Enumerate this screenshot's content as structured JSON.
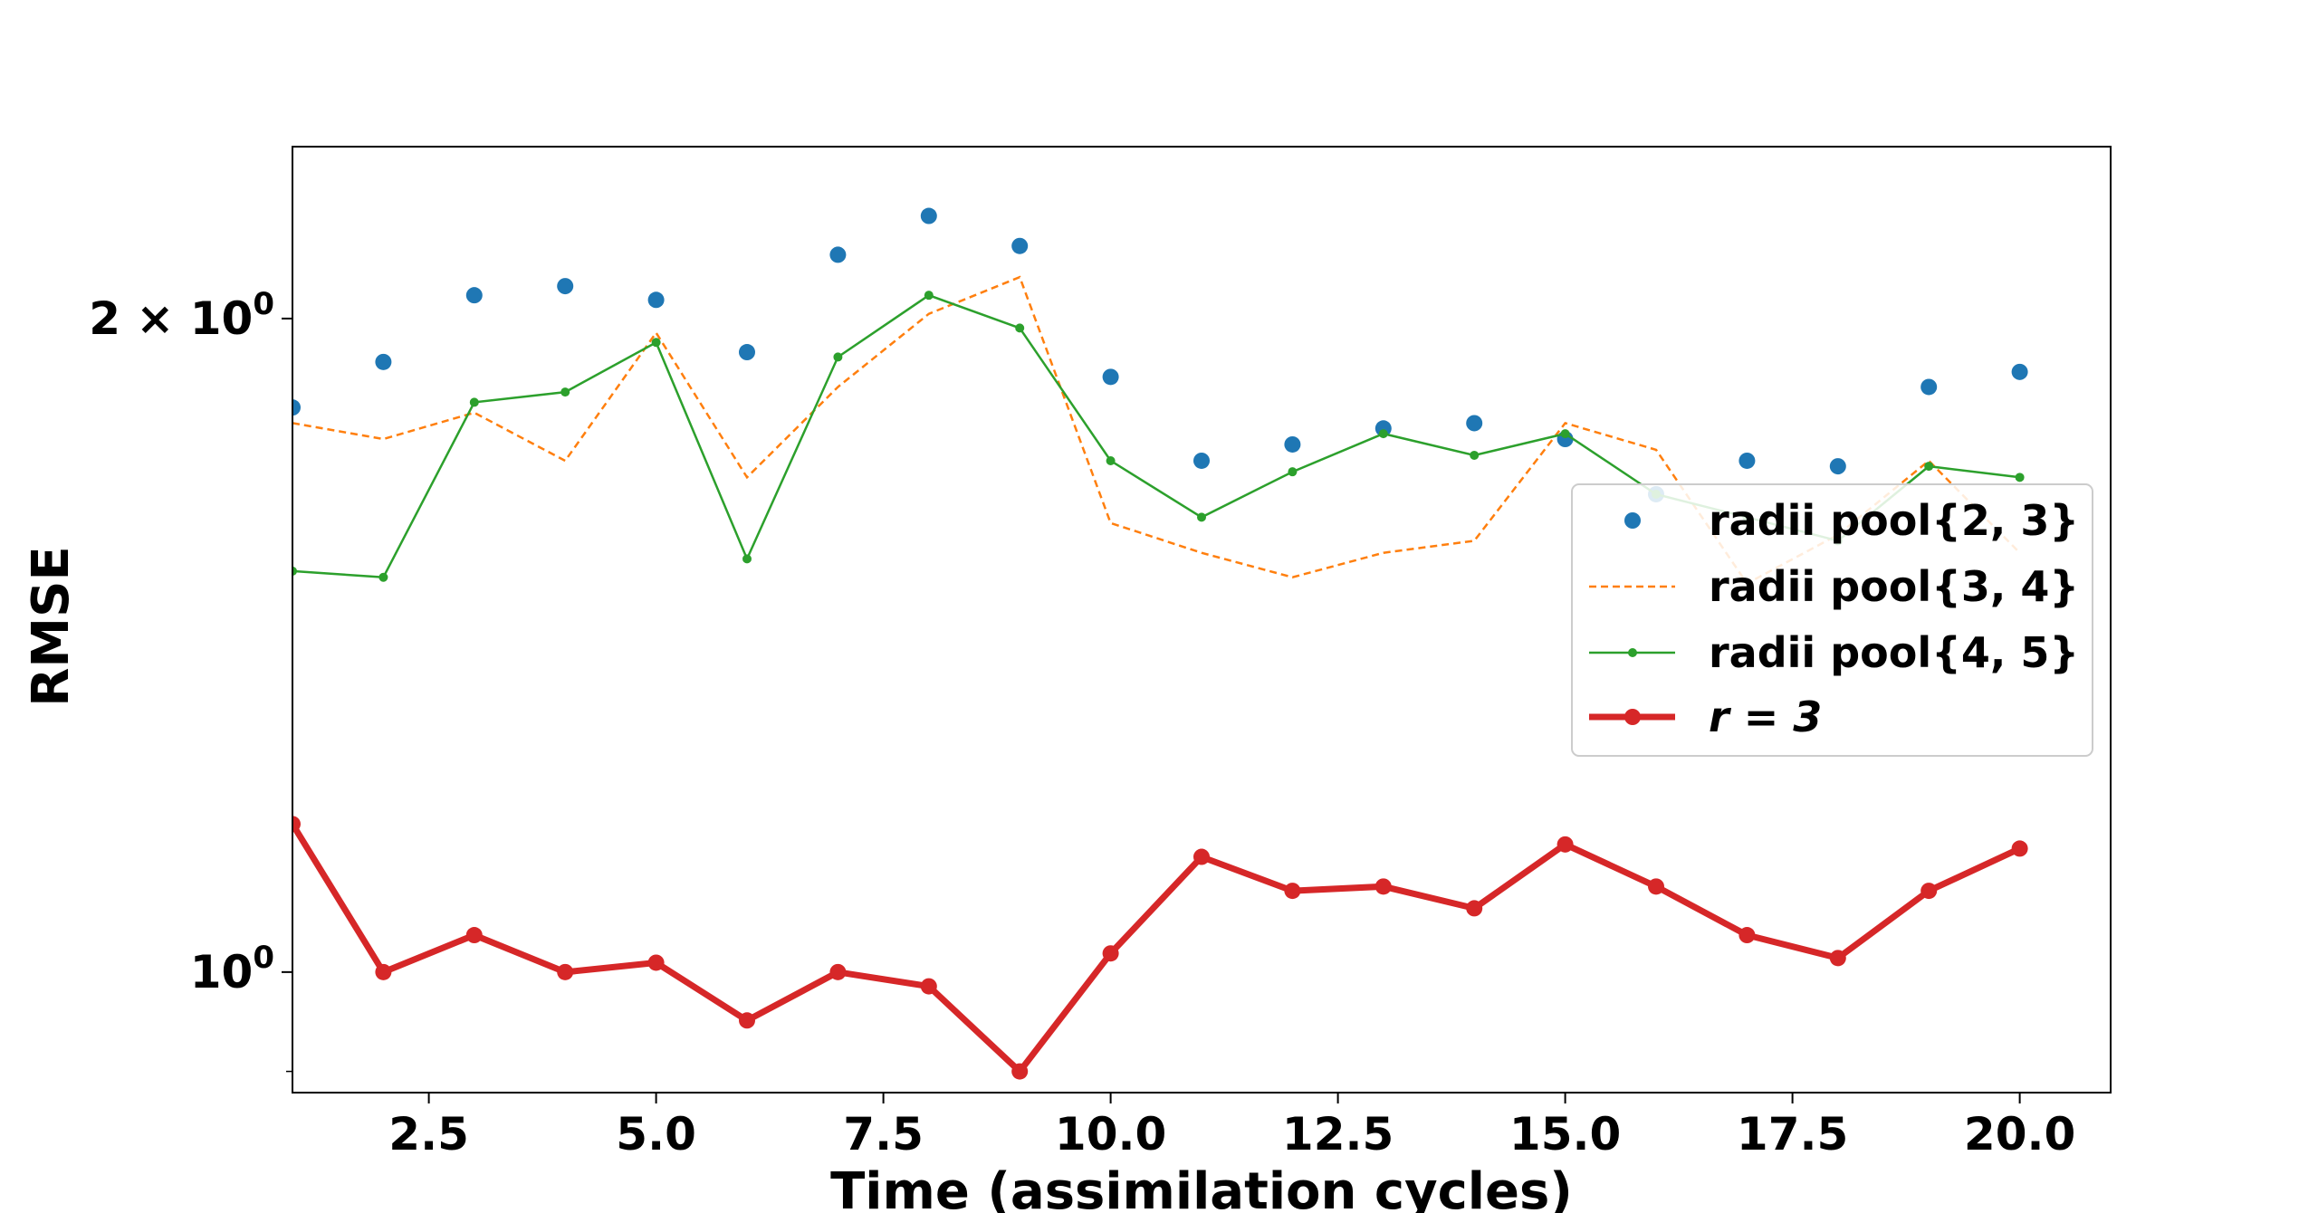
{
  "chart_data": {
    "type": "line",
    "title": "",
    "xlabel": "Time (assimilation cycles)",
    "ylabel": "RMSE",
    "yscale": "log",
    "xlim": [
      1,
      21
    ],
    "ylim": [
      0.88,
      2.4
    ],
    "grid": false,
    "legend_position": "center-right",
    "x_ticks": [
      {
        "value": 2.5,
        "label": "2.5"
      },
      {
        "value": 5.0,
        "label": "5.0"
      },
      {
        "value": 7.5,
        "label": "7.5"
      },
      {
        "value": 10.0,
        "label": "10.0"
      },
      {
        "value": 12.5,
        "label": "12.5"
      },
      {
        "value": 15.0,
        "label": "15.0"
      },
      {
        "value": 17.5,
        "label": "17.5"
      },
      {
        "value": 20.0,
        "label": "20.0"
      }
    ],
    "y_ticks": [
      {
        "value": 2,
        "label_main": "2 × 10",
        "label_sup": "0"
      },
      {
        "value": 1,
        "label_main": "10",
        "label_sup": "0"
      }
    ],
    "y_minor_ticks": [
      0.9
    ],
    "x": [
      1,
      2,
      3,
      4,
      5,
      6,
      7,
      8,
      9,
      10,
      11,
      12,
      13,
      14,
      15,
      16,
      17,
      18,
      19,
      20
    ],
    "series": [
      {
        "name": "radii pool{2, 3}",
        "legend_main": "radii pool{2, 3}",
        "style": "markers",
        "color": "#1f77b4",
        "values": [
          1.82,
          1.91,
          2.05,
          2.07,
          2.04,
          1.93,
          2.14,
          2.23,
          2.16,
          1.88,
          1.72,
          1.75,
          1.78,
          1.79,
          1.76,
          1.66,
          1.72,
          1.71,
          1.86,
          1.89
        ]
      },
      {
        "name": "radii pool{3, 4}",
        "legend_main": "radii pool{3, 4}",
        "style": "dashed",
        "color": "#ff7f0e",
        "values": [
          1.79,
          1.76,
          1.81,
          1.72,
          1.97,
          1.69,
          1.86,
          2.01,
          2.09,
          1.61,
          1.56,
          1.52,
          1.56,
          1.58,
          1.79,
          1.74,
          1.51,
          1.59,
          1.72,
          1.56
        ]
      },
      {
        "name": "radii pool{4, 5}",
        "legend_main": "radii pool{4, 5}",
        "style": "line-small-markers",
        "color": "#2ca02c",
        "values": [
          1.53,
          1.52,
          1.83,
          1.85,
          1.95,
          1.55,
          1.92,
          2.05,
          1.98,
          1.72,
          1.62,
          1.7,
          1.77,
          1.73,
          1.77,
          1.66,
          1.62,
          1.58,
          1.71,
          1.69
        ]
      },
      {
        "name": "r = 3",
        "legend_main": "r = 3",
        "style": "thick-line-markers",
        "color": "#d62728",
        "values": [
          1.17,
          1.0,
          1.04,
          1.0,
          1.01,
          0.95,
          1.0,
          0.985,
          0.9,
          1.02,
          1.13,
          1.09,
          1.095,
          1.07,
          1.145,
          1.095,
          1.04,
          1.015,
          1.09,
          1.14
        ]
      }
    ]
  }
}
